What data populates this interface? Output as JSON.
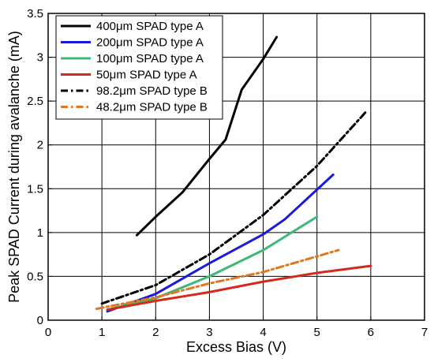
{
  "chart_data": {
    "type": "line",
    "xlabel": "Excess Bias (V)",
    "ylabel": "Peak SPAD Current during avalanche (mA)",
    "xlim": [
      0,
      7
    ],
    "ylim": [
      0,
      3.5
    ],
    "x_ticks": [
      "0",
      "1",
      "2",
      "3",
      "4",
      "5",
      "6",
      "7"
    ],
    "y_ticks": [
      "0",
      "0.5",
      "1",
      "1.5",
      "2",
      "2.5",
      "3",
      "3.5"
    ],
    "grid": true,
    "legend_position": "top-left",
    "series": [
      {
        "name": "400μm SPAD type A",
        "color": "#000000",
        "dash": "solid",
        "x": [
          1.65,
          2,
          2.5,
          3,
          3.3,
          3.6,
          4.0,
          4.25
        ],
        "y": [
          0.97,
          1.18,
          1.46,
          1.84,
          2.06,
          2.63,
          2.98,
          3.23
        ]
      },
      {
        "name": "200μm SPAD type A",
        "color": "#1a1adb",
        "dash": "solid",
        "x": [
          1.1,
          2,
          3,
          4,
          4.4,
          5.3
        ],
        "y": [
          0.1,
          0.3,
          0.65,
          0.98,
          1.15,
          1.66
        ]
      },
      {
        "name": "100μm SPAD type A",
        "color": "#3cb878",
        "dash": "solid",
        "x": [
          1.1,
          2,
          3,
          4,
          5
        ],
        "y": [
          0.12,
          0.25,
          0.5,
          0.8,
          1.18
        ]
      },
      {
        "name": "50μm SPAD type A",
        "color": "#d42a1c",
        "dash": "solid",
        "x": [
          1.1,
          2,
          3,
          4,
          5,
          6
        ],
        "y": [
          0.12,
          0.22,
          0.32,
          0.44,
          0.54,
          0.62
        ]
      },
      {
        "name": "98.2μm SPAD type B",
        "color": "#000000",
        "dash": "dashdot",
        "x": [
          1,
          2,
          3,
          4,
          5,
          5.9
        ],
        "y": [
          0.19,
          0.4,
          0.75,
          1.2,
          1.76,
          2.37
        ]
      },
      {
        "name": "48.2μm SPAD type B",
        "color": "#e07820",
        "dash": "dashdot",
        "x": [
          0.9,
          2,
          3,
          4,
          5.4
        ],
        "y": [
          0.13,
          0.26,
          0.42,
          0.55,
          0.8
        ]
      }
    ]
  }
}
